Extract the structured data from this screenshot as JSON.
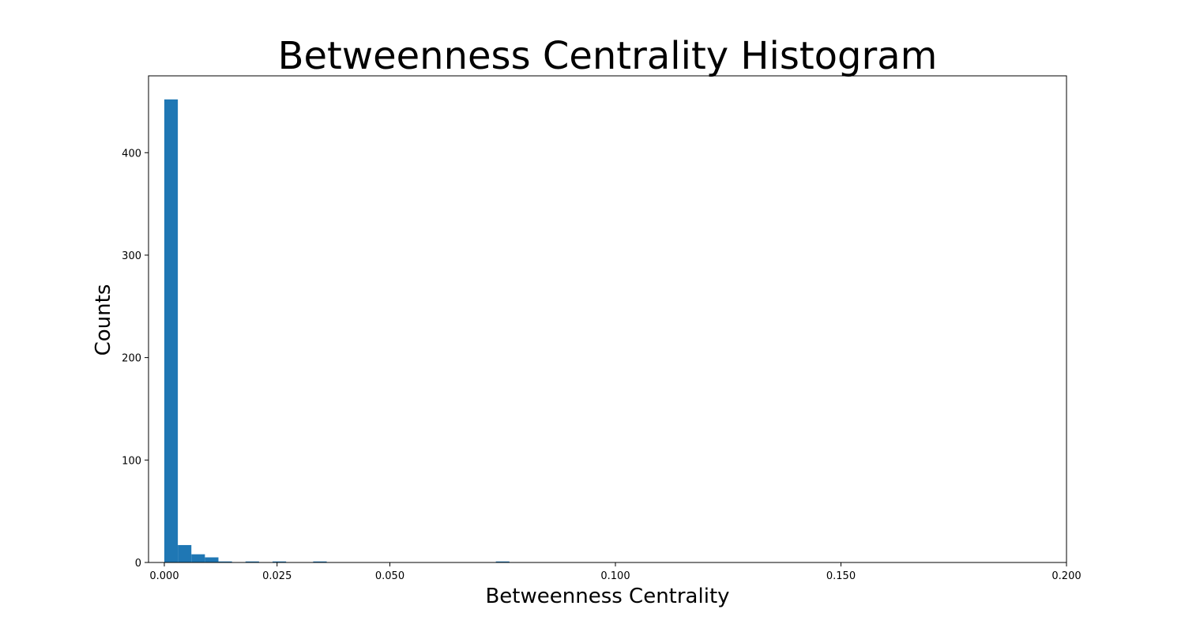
{
  "chart_data": {
    "type": "bar",
    "title": "Betweenness Centrality Histogram",
    "xlabel": "Betweenness Centrality",
    "ylabel": "Counts",
    "xlim": [
      -0.0035,
      0.2
    ],
    "ylim": [
      0,
      475
    ],
    "bin_width": 0.003,
    "x_ticks": [
      0.0,
      0.025,
      0.05,
      0.1,
      0.15,
      0.2
    ],
    "x_tick_labels": [
      "0.000",
      "0.025",
      "0.050",
      "0.100",
      "0.150",
      "0.200"
    ],
    "y_ticks": [
      0,
      100,
      200,
      300,
      400
    ],
    "y_tick_labels": [
      "0",
      "100",
      "200",
      "300",
      "400"
    ],
    "bar_color": "#1f77b4",
    "grid": false,
    "legend": "none",
    "bins": [
      {
        "start": 0.0,
        "count": 452
      },
      {
        "start": 0.003,
        "count": 17
      },
      {
        "start": 0.006,
        "count": 8
      },
      {
        "start": 0.009,
        "count": 5
      },
      {
        "start": 0.012,
        "count": 1
      },
      {
        "start": 0.015,
        "count": 0
      },
      {
        "start": 0.018,
        "count": 1
      },
      {
        "start": 0.021,
        "count": 0
      },
      {
        "start": 0.024,
        "count": 1
      },
      {
        "start": 0.027,
        "count": 0
      },
      {
        "start": 0.03,
        "count": 0
      },
      {
        "start": 0.033,
        "count": 1
      },
      {
        "start": 0.0735,
        "count": 1
      }
    ]
  }
}
